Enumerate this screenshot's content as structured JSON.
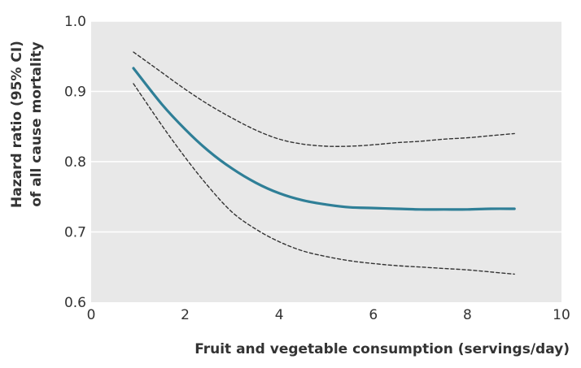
{
  "chart_data": {
    "type": "line",
    "title": "",
    "xlabel": "Fruit and vegetable consumption (servings/day)",
    "ylabel_lines": [
      "Hazard ratio (95% CI)",
      "of all cause mortality"
    ],
    "xlim": [
      0,
      10
    ],
    "ylim": [
      0.6,
      1.0
    ],
    "x_ticks": [
      "0",
      "2",
      "4",
      "6",
      "8",
      "10"
    ],
    "y_ticks": [
      "0.6",
      "0.7",
      "0.8",
      "0.9",
      "1.0"
    ],
    "grid": true,
    "legend": "none",
    "colors": {
      "plot_background": "#e8e8e8",
      "grid": "#ffffff",
      "main_line": "#2f7f97",
      "ci_line": "#333333"
    },
    "series": [
      {
        "style": "solid",
        "x": [
          0.9,
          1.5,
          2,
          2.5,
          3,
          3.5,
          4,
          4.5,
          5,
          5.5,
          6,
          6.5,
          7,
          7.5,
          8,
          8.5,
          9
        ],
        "y": [
          0.933,
          0.882,
          0.846,
          0.815,
          0.79,
          0.77,
          0.755,
          0.745,
          0.739,
          0.735,
          0.734,
          0.733,
          0.732,
          0.732,
          0.732,
          0.733,
          0.733
        ]
      },
      {
        "style": "dashed",
        "x": [
          0.9,
          1.5,
          2,
          2.5,
          3,
          3.5,
          4,
          4.5,
          5,
          5.5,
          6,
          6.5,
          7,
          7.5,
          8,
          8.5,
          9
        ],
        "y": [
          0.956,
          0.927,
          0.903,
          0.881,
          0.862,
          0.845,
          0.832,
          0.825,
          0.822,
          0.822,
          0.824,
          0.827,
          0.829,
          0.832,
          0.834,
          0.837,
          0.84
        ]
      },
      {
        "style": "dashed",
        "x": [
          0.9,
          1.5,
          2,
          2.5,
          3,
          3.5,
          4,
          4.5,
          5,
          5.5,
          6,
          6.5,
          7,
          7.5,
          8,
          8.5,
          9
        ],
        "y": [
          0.911,
          0.852,
          0.806,
          0.764,
          0.728,
          0.704,
          0.686,
          0.673,
          0.665,
          0.659,
          0.655,
          0.652,
          0.65,
          0.648,
          0.646,
          0.643,
          0.64
        ]
      }
    ]
  }
}
